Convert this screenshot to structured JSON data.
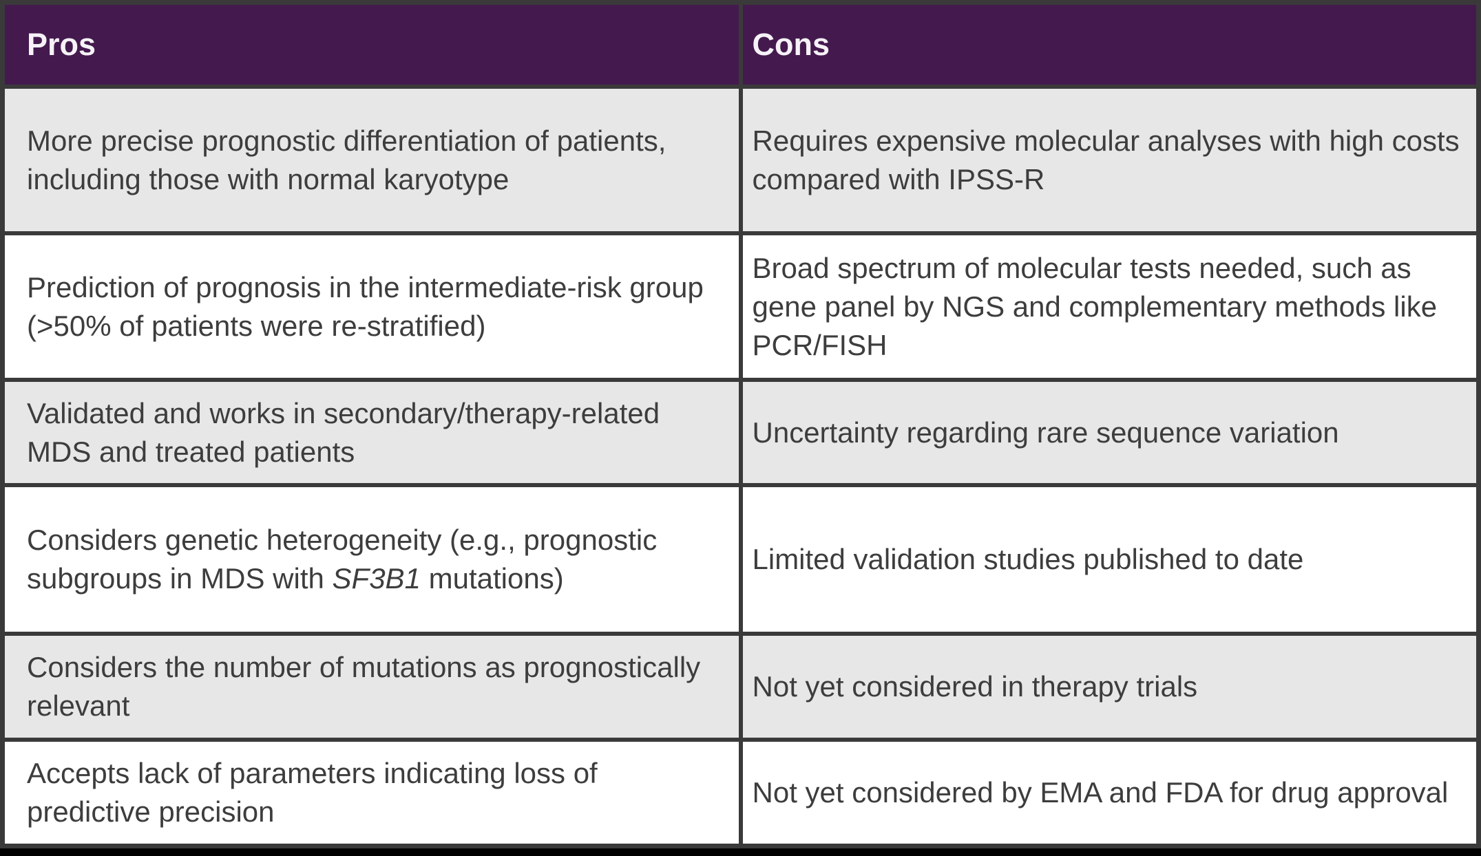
{
  "table": {
    "title_semantics": "Pros and Cons comparison table",
    "header": {
      "pros": "Pros",
      "cons": "Cons"
    },
    "rows": [
      {
        "pro": "More precise prognostic differentiation of patients, including those with normal karyotype",
        "con": "Requires expensive molecular analyses with high costs compared with IPSS-R"
      },
      {
        "pro": "Prediction of prognosis in the intermediate-risk group (>50% of patients were re-stratified)",
        "con": "Broad spectrum of molecular tests needed, such as gene panel by NGS and complementary methods like PCR/FISH"
      },
      {
        "pro": "Validated and works in secondary/therapy-related MDS and treated patients",
        "con": "Uncertainty regarding rare sequence variation"
      },
      {
        "pro_prefix": "Considers genetic heterogeneity (e.g., prognostic subgroups in MDS with ",
        "pro_italic": "SF3B1",
        "pro_suffix": " mutations)",
        "con": "Limited validation studies published to date"
      },
      {
        "pro": "Considers the number of mutations as prognostically relevant",
        "con": "Not yet considered in therapy trials"
      },
      {
        "pro": "Accepts lack of parameters indicating loss of predictive precision",
        "con": "Not yet considered by EMA and FDA for drug approval"
      }
    ],
    "colors": {
      "page_bg": "#000000",
      "border": "#3a3a3a",
      "header_bg": "#441a4e",
      "header_text": "#f6f2f7",
      "row_gray": "#e8e7e7",
      "row_white": "#ffffff",
      "body_text": "#3d3d3d"
    }
  }
}
